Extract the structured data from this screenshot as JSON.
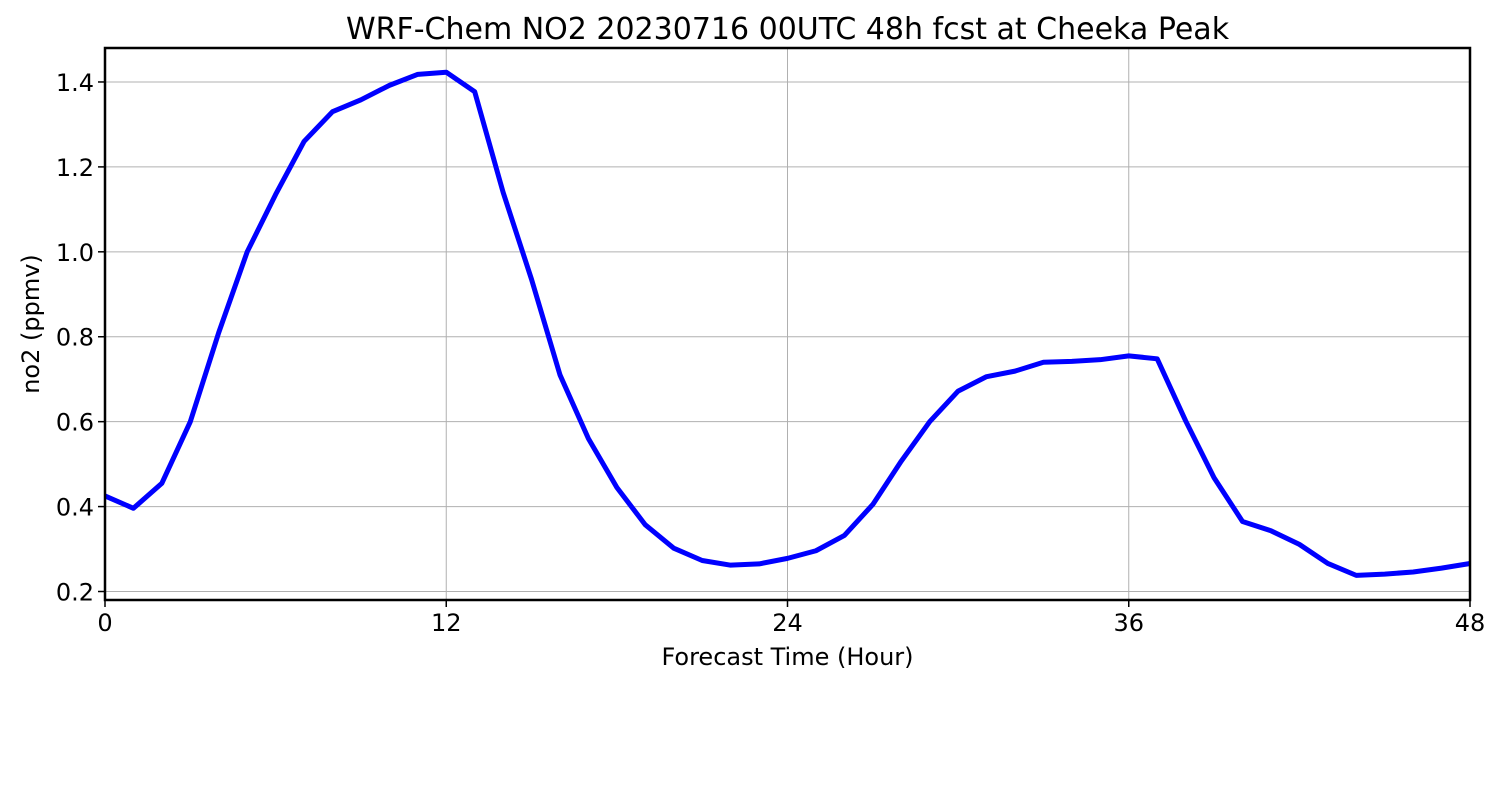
{
  "chart_data": {
    "type": "line",
    "title": "WRF-Chem NO2  20230716 00UTC 48h fcst at Cheeka Peak",
    "xlabel": "Forecast Time (Hour)",
    "ylabel": "no2  (ppmv)",
    "xlim": [
      0,
      48
    ],
    "ylim": [
      0.18,
      1.48
    ],
    "xticks": [
      0,
      12,
      24,
      36,
      48
    ],
    "xtick_labels": [
      "0",
      "12",
      "24",
      "36",
      "48"
    ],
    "yticks": [
      0.2,
      0.4,
      0.6,
      0.8,
      1.0,
      1.2,
      1.4
    ],
    "ytick_labels": [
      "0.2",
      "0.4",
      "0.6",
      "0.8",
      "1.0",
      "1.2",
      "1.4"
    ],
    "grid": true,
    "series": [
      {
        "color": "#0000ff",
        "x": [
          0,
          1,
          2,
          3,
          4,
          5,
          6,
          7,
          8,
          9,
          10,
          11,
          12,
          13,
          14,
          15,
          16,
          17,
          18,
          19,
          20,
          21,
          22,
          23,
          24,
          25,
          26,
          27,
          28,
          29,
          30,
          31,
          32,
          33,
          34,
          35,
          36,
          37,
          38,
          39,
          40,
          41,
          42,
          43,
          44,
          45,
          46,
          47,
          48
        ],
        "values": [
          0.425,
          0.396,
          0.455,
          0.6,
          0.81,
          1.0,
          1.135,
          1.26,
          1.33,
          1.358,
          1.392,
          1.418,
          1.423,
          1.377,
          1.14,
          0.935,
          0.71,
          0.56,
          0.445,
          0.357,
          0.302,
          0.273,
          0.262,
          0.265,
          0.278,
          0.296,
          0.332,
          0.405,
          0.507,
          0.6,
          0.672,
          0.706,
          0.719,
          0.74,
          0.742,
          0.746,
          0.755,
          0.748,
          0.602,
          0.468,
          0.365,
          0.343,
          0.311,
          0.266,
          0.238,
          0.241,
          0.246,
          0.255,
          0.266
        ]
      }
    ]
  }
}
